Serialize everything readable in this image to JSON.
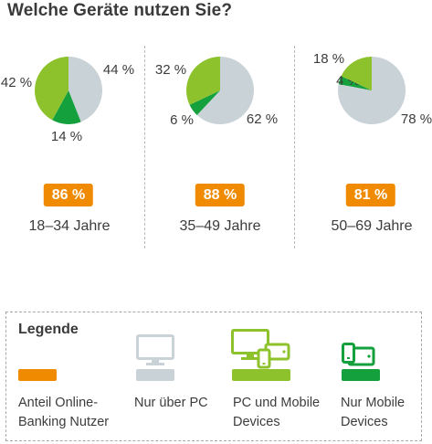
{
  "title": "Welche Geräte nutzen Sie?",
  "colors": {
    "nur_pc": "#c9d2d7",
    "pc_und_mobile": "#8dc22c",
    "nur_mobile": "#14a13d",
    "online_banking": "#f08a00"
  },
  "chart_data": [
    {
      "type": "pie",
      "group": "18–34 Jahre",
      "online_banking_share": "86 %",
      "slices": [
        {
          "name": "Nur über PC",
          "value": 44,
          "label": "44 %"
        },
        {
          "name": "Nur Mobile Devices",
          "value": 14,
          "label": "14 %"
        },
        {
          "name": "PC und Mobile Devices",
          "value": 42,
          "label": "42 %"
        }
      ]
    },
    {
      "type": "pie",
      "group": "35–49 Jahre",
      "online_banking_share": "88 %",
      "slices": [
        {
          "name": "Nur über PC",
          "value": 62,
          "label": "62 %"
        },
        {
          "name": "Nur Mobile Devices",
          "value": 6,
          "label": "6 %"
        },
        {
          "name": "PC und Mobile Devices",
          "value": 32,
          "label": "32 %"
        }
      ]
    },
    {
      "type": "pie",
      "group": "50–69 Jahre",
      "online_banking_share": "81 %",
      "slices": [
        {
          "name": "Nur über PC",
          "value": 78,
          "label": "78 %"
        },
        {
          "name": "Nur Mobile Devices",
          "value": 4,
          "label": "4 %"
        },
        {
          "name": "PC und Mobile Devices",
          "value": 18,
          "label": "18 %"
        }
      ]
    }
  ],
  "legend": {
    "title": "Legende",
    "items": [
      {
        "label_line1": "Anteil Online-",
        "label_line2": "Banking Nutzer",
        "icon": "none",
        "color": "#f08a00"
      },
      {
        "label_line1": "Nur über PC",
        "label_line2": "",
        "icon": "monitor-icon",
        "color": "#c9d2d7"
      },
      {
        "label_line1": "PC und Mobile",
        "label_line2": "Devices",
        "icon": "devices-icon",
        "color": "#8dc22c"
      },
      {
        "label_line1": "Nur Mobile",
        "label_line2": "Devices",
        "icon": "mobile-devices-icon",
        "color": "#14a13d"
      }
    ]
  }
}
